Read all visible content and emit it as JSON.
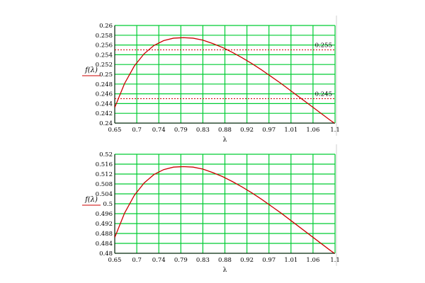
{
  "colors": {
    "background": "#ffffff",
    "grid": "#00cc33",
    "curve": "#cc0000",
    "reference_line": "#cc0000",
    "axis": "#000000",
    "legend_line": "#cc0000"
  },
  "chart_data": [
    {
      "type": "line",
      "title": "",
      "xlabel": "λ",
      "ylabel": "f(λ)",
      "xlim": [
        0.65,
        1.1
      ],
      "ylim": [
        0.24,
        0.26
      ],
      "grid": true,
      "x_ticks": [
        "0.65",
        "0.7",
        "0.74",
        "0.79",
        "0.83",
        "0.88",
        "0.92",
        "0.97",
        "1.01",
        "1.06",
        "1.1"
      ],
      "y_ticks": [
        "0.24",
        "0.242",
        "0.244",
        "0.246",
        "0.248",
        "0.25",
        "0.252",
        "0.254",
        "0.256",
        "0.258",
        "0.26"
      ],
      "series": [
        {
          "name": "",
          "line_style": "solid",
          "x": [
            0.65,
            0.67,
            0.69,
            0.71,
            0.73,
            0.75,
            0.77,
            0.79,
            0.81,
            0.83,
            0.85,
            0.87,
            0.89,
            0.91,
            0.93,
            0.95,
            0.97,
            0.99,
            1.01,
            1.03,
            1.05,
            1.07,
            1.09,
            1.1
          ],
          "y": [
            0.2432,
            0.2481,
            0.2517,
            0.2542,
            0.2559,
            0.2569,
            0.2574,
            0.2575,
            0.2574,
            0.257,
            0.2563,
            0.2555,
            0.2545,
            0.2534,
            0.2522,
            0.2509,
            0.2495,
            0.2481,
            0.2466,
            0.2451,
            0.2436,
            0.2421,
            0.2406,
            0.2399
          ]
        }
      ],
      "reference_lines": [
        {
          "y": 0.255,
          "label": "0.255",
          "style": "dashed"
        },
        {
          "y": 0.245,
          "label": "0.245",
          "style": "dashed"
        }
      ]
    },
    {
      "type": "line",
      "title": "",
      "xlabel": "λ",
      "ylabel": "f(λ)",
      "xlim": [
        0.65,
        1.1
      ],
      "ylim": [
        0.48,
        0.52
      ],
      "grid": true,
      "x_ticks": [
        "0.65",
        "0.7",
        "0.74",
        "0.79",
        "0.83",
        "0.88",
        "0.92",
        "0.97",
        "1.01",
        "1.06",
        "1.1"
      ],
      "y_ticks": [
        "0.48",
        "0.484",
        "0.488",
        "0.492",
        "0.496",
        "0.5",
        "0.504",
        "0.508",
        "0.512",
        "0.516",
        "0.52"
      ],
      "series": [
        {
          "name": "",
          "line_style": "solid",
          "x": [
            0.65,
            0.67,
            0.69,
            0.71,
            0.73,
            0.75,
            0.77,
            0.79,
            0.81,
            0.83,
            0.85,
            0.87,
            0.89,
            0.91,
            0.93,
            0.95,
            0.97,
            0.99,
            1.01,
            1.03,
            1.05,
            1.07,
            1.09,
            1.1
          ],
          "y": [
            0.4864,
            0.4962,
            0.5034,
            0.5084,
            0.5118,
            0.5138,
            0.5148,
            0.515,
            0.5148,
            0.514,
            0.5126,
            0.511,
            0.509,
            0.5068,
            0.5044,
            0.5018,
            0.499,
            0.4962,
            0.4932,
            0.4902,
            0.4872,
            0.4842,
            0.4812,
            0.4798
          ]
        }
      ],
      "reference_lines": []
    }
  ]
}
